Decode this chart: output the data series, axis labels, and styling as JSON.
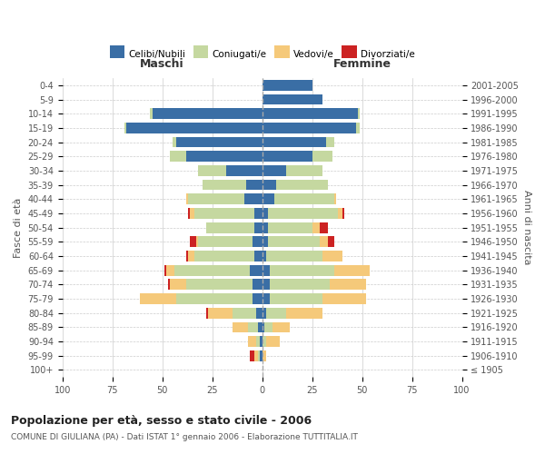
{
  "age_groups": [
    "100+",
    "95-99",
    "90-94",
    "85-89",
    "80-84",
    "75-79",
    "70-74",
    "65-69",
    "60-64",
    "55-59",
    "50-54",
    "45-49",
    "40-44",
    "35-39",
    "30-34",
    "25-29",
    "20-24",
    "15-19",
    "10-14",
    "5-9",
    "0-4"
  ],
  "birth_years": [
    "≤ 1905",
    "1906-1910",
    "1911-1915",
    "1916-1920",
    "1921-1925",
    "1926-1930",
    "1931-1935",
    "1936-1940",
    "1941-1945",
    "1946-1950",
    "1951-1955",
    "1956-1960",
    "1961-1965",
    "1966-1970",
    "1971-1975",
    "1976-1980",
    "1981-1985",
    "1986-1990",
    "1991-1995",
    "1996-2000",
    "2001-2005"
  ],
  "maschi_celibi": [
    0,
    1,
    1,
    2,
    3,
    5,
    5,
    6,
    4,
    5,
    4,
    4,
    9,
    8,
    18,
    38,
    43,
    68,
    55,
    0,
    0
  ],
  "maschi_coniugati": [
    0,
    1,
    2,
    5,
    12,
    38,
    33,
    38,
    30,
    27,
    24,
    30,
    28,
    22,
    14,
    8,
    2,
    1,
    1,
    0,
    0
  ],
  "maschi_vedovi": [
    0,
    2,
    4,
    8,
    12,
    18,
    8,
    4,
    3,
    1,
    0,
    2,
    1,
    0,
    0,
    0,
    0,
    0,
    0,
    0,
    0
  ],
  "maschi_divorziati": [
    0,
    2,
    0,
    0,
    1,
    0,
    1,
    1,
    1,
    3,
    0,
    1,
    0,
    0,
    0,
    0,
    0,
    0,
    0,
    0,
    0
  ],
  "femmine_celibi": [
    0,
    0,
    0,
    1,
    2,
    4,
    4,
    4,
    2,
    3,
    3,
    3,
    6,
    7,
    12,
    25,
    32,
    47,
    48,
    30,
    25
  ],
  "femmine_coniugati": [
    0,
    0,
    2,
    4,
    10,
    26,
    30,
    32,
    28,
    26,
    22,
    35,
    30,
    26,
    18,
    10,
    4,
    2,
    1,
    0,
    0
  ],
  "femmine_vedovi": [
    0,
    2,
    7,
    9,
    18,
    22,
    18,
    18,
    10,
    4,
    4,
    2,
    1,
    0,
    0,
    0,
    0,
    0,
    0,
    0,
    0
  ],
  "femmine_divorziati": [
    0,
    0,
    0,
    0,
    0,
    0,
    0,
    0,
    0,
    3,
    4,
    1,
    0,
    0,
    0,
    0,
    0,
    0,
    0,
    0,
    0
  ],
  "color_celibi": "#3a6ea5",
  "color_coniugati": "#c5d8a0",
  "color_vedovi": "#f5c97a",
  "color_divorziati": "#cc2222",
  "title": "Popolazione per età, sesso e stato civile - 2006",
  "subtitle": "COMUNE DI GIULIANA (PA) - Dati ISTAT 1° gennaio 2006 - Elaborazione TUTTITALIA.IT",
  "xlabel_left": "Maschi",
  "xlabel_right": "Femmine",
  "ylabel_left": "Fasce di età",
  "ylabel_right": "Anni di nascita",
  "xlim": 100,
  "background_color": "#ffffff"
}
